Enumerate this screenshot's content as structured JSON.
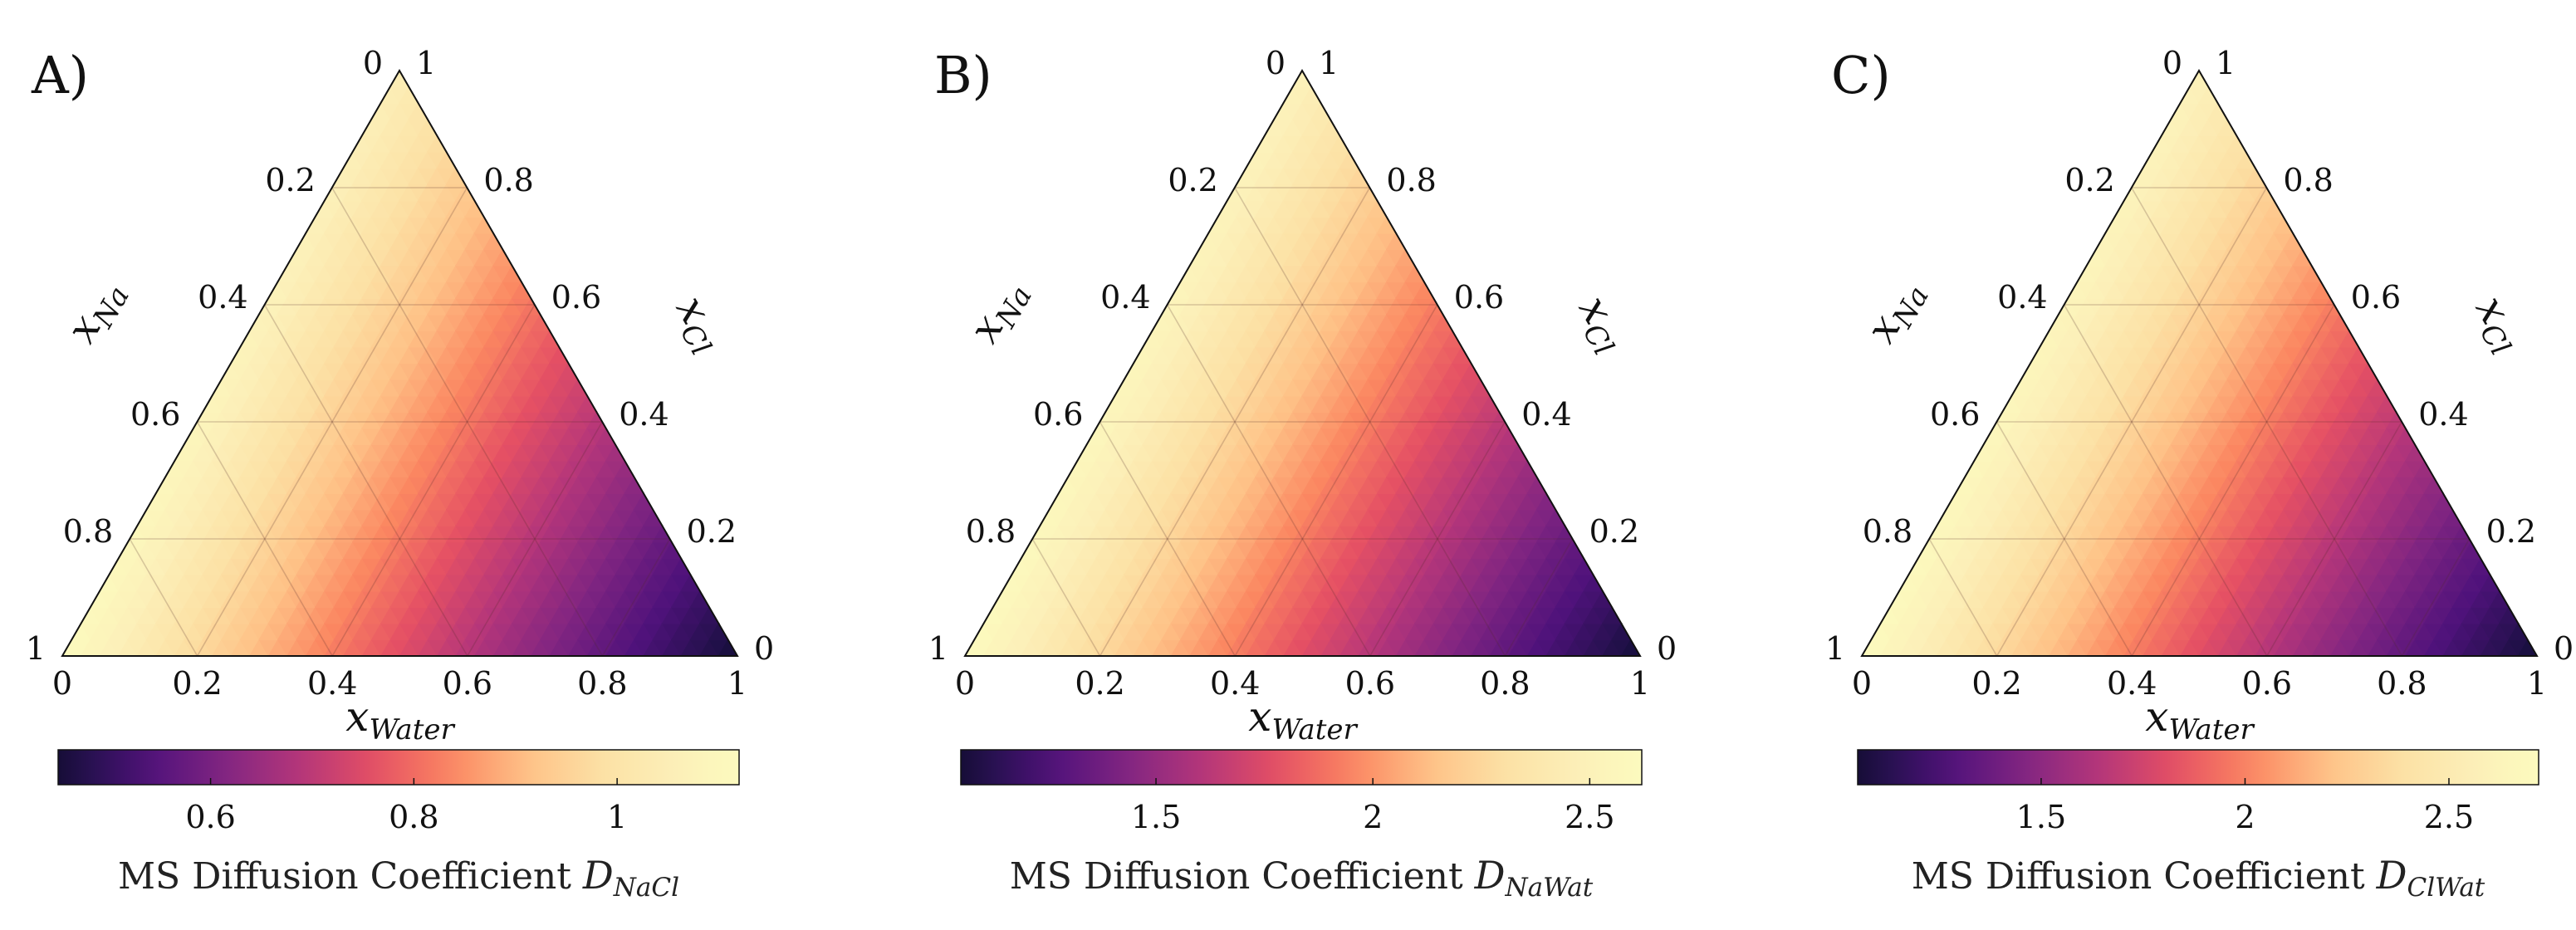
{
  "chart_data": [
    {
      "type": "heatmap",
      "subtype": "ternary",
      "panel": "A)",
      "axes": {
        "bottom": {
          "variable": "x",
          "subscript": "Water",
          "ticks": [
            "0",
            "0.2",
            "0.4",
            "0.6",
            "0.8",
            "1"
          ]
        },
        "left": {
          "variable": "x",
          "subscript": "Na",
          "ticks": [
            "1",
            "0.8",
            "0.6",
            "0.4",
            "0.2",
            "0"
          ]
        },
        "right": {
          "variable": "x",
          "subscript": "Cl",
          "ticks": [
            "0",
            "0.2",
            "0.4",
            "0.6",
            "0.8",
            "1"
          ]
        }
      },
      "grid": true,
      "colormap": "magma",
      "colorbar": {
        "range": [
          0.45,
          1.12
        ],
        "ticks": [
          0.6,
          0.8,
          1
        ],
        "tick_labels": [
          "0.6",
          "0.8",
          "1"
        ],
        "label": "MS Diffusion Coefficient ",
        "label_symbol": "D",
        "label_subscript": "NaCl"
      },
      "field": {
        "description_values": "value at corners (pure components)",
        "corner_values": {
          "water": 0.45,
          "na": 1.12,
          "cl": 1.05
        }
      }
    },
    {
      "type": "heatmap",
      "subtype": "ternary",
      "panel": "B)",
      "axes": {
        "bottom": {
          "variable": "x",
          "subscript": "Water",
          "ticks": [
            "0",
            "0.2",
            "0.4",
            "0.6",
            "0.8",
            "1"
          ]
        },
        "left": {
          "variable": "x",
          "subscript": "Na",
          "ticks": [
            "1",
            "0.8",
            "0.6",
            "0.4",
            "0.2",
            "0"
          ]
        },
        "right": {
          "variable": "x",
          "subscript": "Cl",
          "ticks": [
            "0",
            "0.2",
            "0.4",
            "0.6",
            "0.8",
            "1"
          ]
        }
      },
      "grid": true,
      "colormap": "magma",
      "colorbar": {
        "range": [
          1.05,
          2.62
        ],
        "ticks": [
          1.5,
          2,
          2.5
        ],
        "tick_labels": [
          "1.5",
          "2",
          "2.5"
        ],
        "label": "MS Diffusion Coefficient ",
        "label_symbol": "D",
        "label_subscript": "NaWat"
      },
      "field": {
        "description_values": "value at corners (pure components)",
        "corner_values": {
          "water": 1.05,
          "na": 2.62,
          "cl": 2.5
        }
      }
    },
    {
      "type": "heatmap",
      "subtype": "ternary",
      "panel": "C)",
      "axes": {
        "bottom": {
          "variable": "x",
          "subscript": "Water",
          "ticks": [
            "0",
            "0.2",
            "0.4",
            "0.6",
            "0.8",
            "1"
          ]
        },
        "left": {
          "variable": "x",
          "subscript": "Na",
          "ticks": [
            "1",
            "0.8",
            "0.6",
            "0.4",
            "0.2",
            "0"
          ]
        },
        "right": {
          "variable": "x",
          "subscript": "Cl",
          "ticks": [
            "0",
            "0.2",
            "0.4",
            "0.6",
            "0.8",
            "1"
          ]
        }
      },
      "grid": true,
      "colormap": "magma",
      "colorbar": {
        "range": [
          1.05,
          2.72
        ],
        "ticks": [
          1.5,
          2,
          2.5
        ],
        "tick_labels": [
          "1.5",
          "2",
          "2.5"
        ],
        "label": "MS Diffusion Coefficient ",
        "label_symbol": "D",
        "label_subscript": "ClWat"
      },
      "field": {
        "description_values": "value at corners (pure components)",
        "corner_values": {
          "water": 1.05,
          "na": 2.72,
          "cl": 2.6
        }
      }
    }
  ]
}
